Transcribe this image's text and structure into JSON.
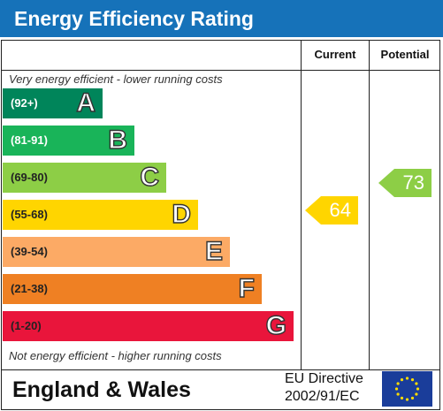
{
  "title": "Energy Efficiency Rating",
  "columns": {
    "current": "Current",
    "potential": "Potential"
  },
  "top_caption": "Very energy efficient - lower running costs",
  "bottom_caption": "Not energy efficient - higher running costs",
  "bands": [
    {
      "range": "(92+)",
      "letter": "A",
      "color": "#00855a",
      "range_color": "#ffffff"
    },
    {
      "range": "(81-91)",
      "letter": "B",
      "color": "#19b459",
      "range_color": "#ffffff"
    },
    {
      "range": "(69-80)",
      "letter": "C",
      "color": "#8dce46",
      "range_color": "#222222"
    },
    {
      "range": "(55-68)",
      "letter": "D",
      "color": "#ffd500",
      "range_color": "#222222"
    },
    {
      "range": "(39-54)",
      "letter": "E",
      "color": "#fcaa65",
      "range_color": "#222222"
    },
    {
      "range": "(21-38)",
      "letter": "F",
      "color": "#ef8023",
      "range_color": "#222222"
    },
    {
      "range": "(1-20)",
      "letter": "G",
      "color": "#e9153b",
      "range_color": "#222222"
    }
  ],
  "current": {
    "value": "64",
    "band": "D",
    "color": "#ffd500"
  },
  "potential": {
    "value": "73",
    "band": "C",
    "color": "#8dce46"
  },
  "footer": {
    "country": "England & Wales",
    "directive_line1": "EU Directive",
    "directive_line2": "2002/91/EC",
    "flag_color": "#1a3d9a",
    "star_color": "#ffdd00"
  }
}
